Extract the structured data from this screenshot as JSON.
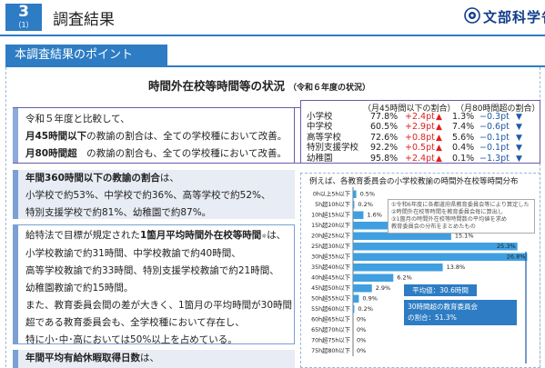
{
  "header": {
    "section_number": "3",
    "section_sub": "（1）",
    "title": "調査結果",
    "logo_text": "文部科学省"
  },
  "banner": {
    "label": "本調査結果のポイント"
  },
  "main_title": {
    "text": "時間外在校等時間等の状況",
    "sub": "（令和６年度の状況）"
  },
  "block1": {
    "line1": "令和５年度と比較して、",
    "line2_bold": "月45時間以下",
    "line2_rest": "の教諭の割合は、全ての学校種において改善。",
    "line3_bold": "月80時間超",
    "line3_rest": "　の教諭の割合も、全ての学校種において改善。"
  },
  "block2": {
    "line1_bold": "年間360時間以下の教諭の割合",
    "line1_rest": "は、",
    "line2": "小学校で約53%、中学校で約36%、高等学校で約52%、",
    "line3": "特別支援学校で約81%、幼稚園で約87%。"
  },
  "block3": {
    "line1_pre": "給特法で目標が規定された",
    "line1_bold": "1箇月平均時間外在校等時間",
    "line1_note": "※",
    "line1_post": "は、",
    "line2": "小学校教諭で約31時間、中学校教諭で約40時間、",
    "line3": "高等学校教諭で約33時間、特別支援学校教諭で約21時間、",
    "line4": "幼稚園教諭で約15時間。",
    "line5": "また、教育委員会間の差が大きく、1箇月の平均時間が30時間",
    "line6": "超である教育委員会も、全学校種において存在し、",
    "line7": "特に小･中･高においては50%以上を占めている。"
  },
  "block4": {
    "line1_bold": "年間平均有給休暇取得日数",
    "line1_rest": "は、"
  },
  "summary": {
    "head1": "（月45時間以下の割合）",
    "head2": "（月80時間超の割合）",
    "rows": [
      {
        "name": "小学校",
        "p1": "77.8%",
        "d1": "+2.4pt",
        "p2": "1.3%",
        "d2": "−0.3pt"
      },
      {
        "name": "中学校",
        "p1": "60.5%",
        "d1": "+2.9pt",
        "p2": "7.4%",
        "d2": "−0.6pt"
      },
      {
        "name": "高等学校",
        "p1": "72.6%",
        "d1": "+0.8pt",
        "p2": "5.6%",
        "d2": "−0.1pt"
      },
      {
        "name": "特別支援学校",
        "p1": "92.2%",
        "d1": "+0.5pt",
        "p2": "0.4%",
        "d2": "−0.1pt"
      },
      {
        "name": "幼稚園",
        "p1": "95.8%",
        "d1": "+2.4pt",
        "p2": "0.1%",
        "d2": "−1.3pt"
      }
    ]
  },
  "chart_title": "例えば、各教育委員会の小学校教諭の時間外在校等時間分布",
  "explain": [
    "①令和6年度に各都道府県教育委員会等により算定した",
    "②時間外在校等時間を教育委員会毎に算出し",
    "③1箇月の時間外在校等時間数の平均値を求め",
    "教育委員会の分布をまとめたもの"
  ],
  "avg_label": "平均値：30.6時間",
  "over30_line1": "30時間超の教育委員会",
  "over30_line2": "の割合：51.3%",
  "colors": {
    "accent": "#2d7cc4",
    "bar": "#3f9fe0",
    "up": "#e02020",
    "down": "#1e5aa8"
  },
  "chart_data": {
    "type": "bar",
    "orientation": "horizontal",
    "title": "例えば、各教育委員会の小学校教諭の時間外在校等時間分布",
    "categories": [
      "0h以上5h以下",
      "5h超10h以下",
      "10h超15h以下",
      "15h超20h以下",
      "20h超25h以下",
      "25h超30h以下",
      "30h超35h以下",
      "35h超40h以下",
      "40h超45h以下",
      "45h超50h以下",
      "50h超55h以下",
      "55h超60h以下",
      "60h超65h以下",
      "65h超70h以下",
      "70h超75h以下",
      "75h超80h以下"
    ],
    "values": [
      0.5,
      0.2,
      1.6,
      6.1,
      15.1,
      25.3,
      26.8,
      13.8,
      6.2,
      2.9,
      0.9,
      0.2,
      0.0,
      0.0,
      0.0,
      0.0
    ],
    "value_labels": [
      "0.5%",
      "0.2%",
      "1.6%",
      "6.1%",
      "15.1%",
      "25.3%",
      "26.8%",
      "13.8%",
      "6.2%",
      "2.9%",
      "0.9%",
      "0.2%",
      "0%",
      "0%",
      "0%",
      "0%"
    ],
    "xlim": [
      0,
      28
    ]
  }
}
